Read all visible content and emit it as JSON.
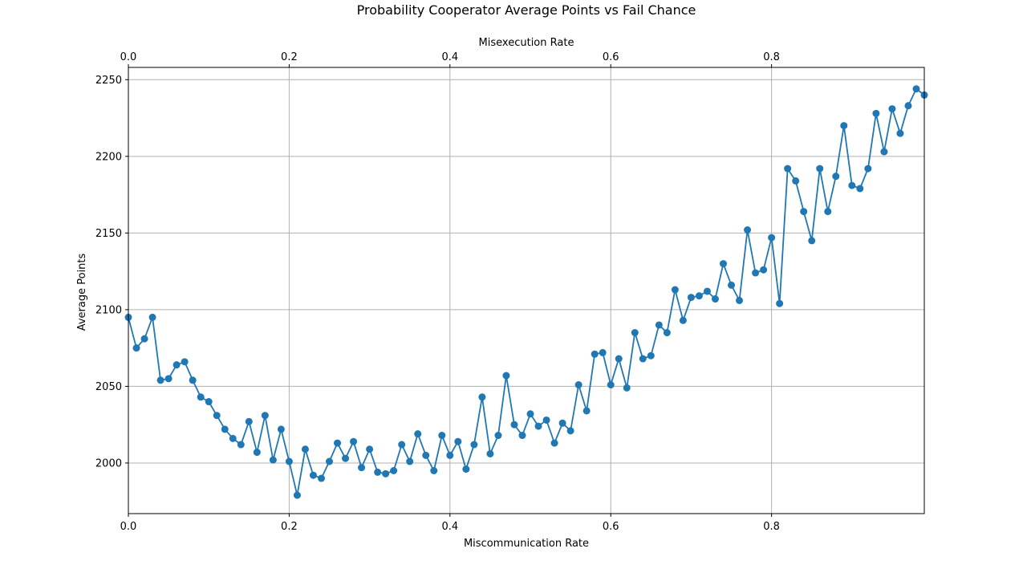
{
  "chart_data": {
    "type": "line",
    "title": "Probability Cooperator Average Points vs Fail Chance",
    "xlabel": "Miscommunication Rate",
    "x2label": "Misexecution Rate",
    "ylabel": "Average Points",
    "xlim": [
      0,
      0.99
    ],
    "ylim": [
      1967,
      2258
    ],
    "xticks": [
      0.0,
      0.2,
      0.4,
      0.6,
      0.8
    ],
    "xtick_labels": [
      "0.0",
      "0.2",
      "0.4",
      "0.6",
      "0.8"
    ],
    "yticks": [
      2000,
      2050,
      2100,
      2150,
      2200,
      2250
    ],
    "ytick_labels": [
      "2000",
      "2050",
      "2100",
      "2150",
      "2200",
      "2250"
    ],
    "grid": true,
    "color": "#1f77b4",
    "x": [
      0.0,
      0.01,
      0.02,
      0.03,
      0.04,
      0.05,
      0.06,
      0.07,
      0.08,
      0.09,
      0.1,
      0.11,
      0.12,
      0.13,
      0.14,
      0.15,
      0.16,
      0.17,
      0.18,
      0.19,
      0.2,
      0.21,
      0.22,
      0.23,
      0.24,
      0.25,
      0.26,
      0.27,
      0.28,
      0.29,
      0.3,
      0.31,
      0.32,
      0.33,
      0.34,
      0.35,
      0.36,
      0.37,
      0.38,
      0.39,
      0.4,
      0.41,
      0.42,
      0.43,
      0.44,
      0.45,
      0.46,
      0.47,
      0.48,
      0.49,
      0.5,
      0.51,
      0.52,
      0.53,
      0.54,
      0.55,
      0.56,
      0.57,
      0.58,
      0.59,
      0.6,
      0.61,
      0.62,
      0.63,
      0.64,
      0.65,
      0.66,
      0.67,
      0.68,
      0.69,
      0.7,
      0.71,
      0.72,
      0.73,
      0.74,
      0.75,
      0.76,
      0.77,
      0.78,
      0.79,
      0.8,
      0.81,
      0.82,
      0.83,
      0.84,
      0.85,
      0.86,
      0.87,
      0.88,
      0.89,
      0.9,
      0.91,
      0.92,
      0.93,
      0.94,
      0.95,
      0.96,
      0.97,
      0.98,
      0.99
    ],
    "y": [
      2095,
      2075,
      2081,
      2095,
      2054,
      2055,
      2064,
      2066,
      2054,
      2043,
      2040,
      2031,
      2022,
      2016,
      2012,
      2027,
      2007,
      2031,
      2002,
      2022,
      2001,
      1979,
      2009,
      1992,
      1990,
      2001,
      2013,
      2003,
      2014,
      1997,
      2009,
      1994,
      1993,
      1995,
      2012,
      2001,
      2019,
      2005,
      1995,
      2018,
      2005,
      2014,
      1996,
      2012,
      2043,
      2006,
      2018,
      2057,
      2025,
      2018,
      2032,
      2024,
      2028,
      2013,
      2026,
      2021,
      2051,
      2034,
      2071,
      2072,
      2051,
      2068,
      2049,
      2085,
      2068,
      2070,
      2090,
      2085,
      2113,
      2093,
      2108,
      2109,
      2112,
      2107,
      2130,
      2116,
      2106,
      2152,
      2124,
      2126,
      2147,
      2104,
      2192,
      2184,
      2164,
      2145,
      2192,
      2164,
      2187,
      2220,
      2181,
      2179,
      2192,
      2228,
      2203,
      2231,
      2215,
      2233,
      2244,
      2240
    ]
  }
}
